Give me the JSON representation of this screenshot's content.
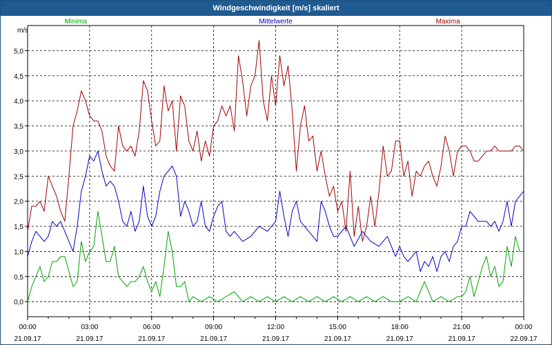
{
  "window": {
    "title": "Windgeschwindigkeit [m/s] skaliert"
  },
  "chart_data": {
    "type": "line",
    "title": "Windgeschwindigkeit [m/s] skaliert",
    "ylabel": "m/s",
    "xlabel": "",
    "ylim": [
      -0.3,
      5.5
    ],
    "xlim": [
      0,
      24
    ],
    "grid": true,
    "legend_placement": "top",
    "yticks": [
      "0,0",
      "0,5",
      "1,0",
      "1,5",
      "2,0",
      "2,5",
      "3,0",
      "3,5",
      "4,0",
      "4,5",
      "5,0"
    ],
    "xticks": [
      {
        "time": "00:00",
        "date": "21.09.17"
      },
      {
        "time": "03:00",
        "date": "21.09.17"
      },
      {
        "time": "06:00",
        "date": "21.09.17"
      },
      {
        "time": "09:00",
        "date": "21.09.17"
      },
      {
        "time": "12:00",
        "date": "21.09.17"
      },
      {
        "time": "15:00",
        "date": "21.09.17"
      },
      {
        "time": "18:00",
        "date": "21.09.17"
      },
      {
        "time": "21:00",
        "date": "21.09.17"
      },
      {
        "time": "00:00",
        "date": "22.09.17"
      }
    ],
    "series": [
      {
        "name": "Minima",
        "color": "#00a000",
        "x": [
          0,
          0.2,
          0.4,
          0.6,
          0.8,
          1.0,
          1.2,
          1.4,
          1.6,
          1.8,
          2.0,
          2.2,
          2.4,
          2.6,
          2.8,
          3.0,
          3.2,
          3.4,
          3.6,
          3.8,
          4.0,
          4.2,
          4.4,
          4.6,
          4.8,
          5.0,
          5.2,
          5.4,
          5.6,
          5.8,
          6.0,
          6.2,
          6.4,
          6.6,
          6.8,
          7.0,
          7.2,
          7.4,
          7.6,
          7.8,
          8.0,
          8.4,
          8.8,
          9.2,
          9.6,
          10.0,
          10.4,
          10.8,
          11.2,
          11.6,
          12.0,
          12.4,
          12.8,
          13.2,
          13.6,
          14.0,
          14.4,
          14.8,
          15.2,
          15.6,
          16.0,
          16.4,
          16.8,
          17.2,
          17.6,
          18.0,
          18.4,
          18.8,
          19.2,
          19.6,
          20.0,
          20.4,
          20.8,
          21.0,
          21.2,
          21.4,
          21.6,
          21.8,
          22.0,
          22.2,
          22.4,
          22.6,
          22.8,
          23.0,
          23.2,
          23.4,
          23.6,
          23.8,
          24.0
        ],
        "y": [
          0.0,
          0.3,
          0.5,
          0.7,
          0.4,
          0.5,
          0.8,
          0.8,
          0.9,
          0.9,
          0.6,
          0.3,
          0.4,
          1.2,
          0.8,
          1.0,
          1.1,
          1.8,
          1.3,
          0.8,
          0.8,
          1.1,
          0.5,
          0.4,
          0.3,
          0.4,
          0.4,
          0.5,
          0.7,
          0.4,
          0.2,
          0.4,
          0.1,
          0.7,
          1.4,
          1.0,
          0.3,
          0.3,
          0.4,
          0.0,
          0.1,
          0.0,
          0.1,
          0.0,
          0.1,
          0.2,
          0.0,
          0.1,
          0.0,
          0.1,
          0.0,
          0.1,
          0.0,
          0.1,
          0.0,
          0.1,
          0.0,
          0.1,
          0.0,
          0.1,
          0.0,
          0.1,
          0.0,
          0.1,
          0.0,
          0.0,
          0.1,
          0.0,
          0.4,
          0.0,
          0.1,
          0.0,
          0.1,
          0.1,
          0.2,
          0.5,
          0.1,
          0.4,
          0.7,
          0.9,
          0.5,
          0.7,
          0.3,
          0.4,
          1.1,
          0.7,
          1.3,
          1.0,
          1.0
        ]
      },
      {
        "name": "Mittelwerte",
        "color": "#0000c0",
        "x": [
          0,
          0.2,
          0.4,
          0.6,
          0.8,
          1.0,
          1.2,
          1.4,
          1.6,
          1.8,
          2.0,
          2.2,
          2.4,
          2.6,
          2.8,
          3.0,
          3.2,
          3.4,
          3.6,
          3.8,
          4.0,
          4.2,
          4.4,
          4.6,
          4.8,
          5.0,
          5.2,
          5.4,
          5.6,
          5.8,
          6.0,
          6.2,
          6.4,
          6.6,
          6.8,
          7.0,
          7.2,
          7.4,
          7.6,
          7.8,
          8.0,
          8.2,
          8.4,
          8.6,
          8.8,
          9.0,
          9.2,
          9.4,
          9.6,
          9.8,
          10.0,
          10.4,
          10.8,
          11.2,
          11.6,
          12.0,
          12.2,
          12.4,
          12.6,
          12.8,
          13.0,
          13.2,
          13.6,
          14.0,
          14.2,
          14.4,
          14.6,
          14.8,
          15.0,
          15.4,
          15.8,
          16.2,
          16.6,
          17.0,
          17.4,
          17.8,
          18.0,
          18.2,
          18.4,
          18.6,
          18.8,
          19.0,
          19.2,
          19.4,
          19.6,
          19.8,
          20.0,
          20.2,
          20.4,
          20.6,
          20.8,
          21.0,
          21.2,
          21.4,
          21.6,
          21.8,
          22.0,
          22.2,
          22.4,
          22.6,
          22.8,
          23.0,
          23.2,
          23.4,
          23.6,
          23.8,
          24.0
        ],
        "y": [
          0.9,
          1.2,
          1.4,
          1.3,
          1.2,
          1.3,
          1.6,
          1.5,
          1.6,
          1.4,
          1.2,
          1.0,
          1.5,
          2.2,
          2.5,
          2.9,
          2.8,
          3.0,
          2.6,
          2.3,
          2.4,
          2.3,
          2.0,
          1.6,
          1.5,
          1.8,
          1.4,
          1.6,
          2.3,
          1.7,
          1.5,
          1.7,
          2.2,
          2.5,
          2.6,
          2.7,
          2.5,
          1.7,
          2.0,
          1.8,
          1.5,
          1.6,
          2.0,
          1.5,
          1.4,
          1.7,
          1.9,
          2.0,
          1.4,
          1.3,
          1.4,
          1.2,
          1.3,
          1.5,
          1.4,
          1.6,
          2.2,
          1.7,
          1.3,
          1.8,
          2.0,
          1.6,
          1.4,
          1.2,
          2.0,
          1.8,
          1.5,
          1.3,
          1.3,
          1.5,
          1.1,
          1.4,
          1.2,
          1.1,
          1.3,
          0.9,
          1.1,
          0.9,
          0.8,
          0.9,
          1.0,
          0.6,
          0.8,
          0.7,
          0.9,
          0.6,
          0.9,
          1.0,
          0.8,
          1.1,
          1.2,
          1.5,
          1.5,
          1.8,
          1.7,
          1.6,
          1.6,
          1.6,
          1.5,
          1.6,
          1.4,
          1.6,
          2.0,
          1.5,
          2.0,
          2.1,
          2.2
        ]
      },
      {
        "name": "Maxima",
        "color": "#a00000",
        "x": [
          0,
          0.2,
          0.4,
          0.6,
          0.8,
          1.0,
          1.2,
          1.4,
          1.6,
          1.8,
          2.0,
          2.2,
          2.4,
          2.6,
          2.8,
          3.0,
          3.2,
          3.4,
          3.6,
          3.8,
          4.0,
          4.2,
          4.4,
          4.6,
          4.8,
          5.0,
          5.2,
          5.4,
          5.6,
          5.8,
          6.0,
          6.2,
          6.4,
          6.6,
          6.8,
          7.0,
          7.2,
          7.4,
          7.6,
          7.8,
          8.0,
          8.2,
          8.4,
          8.6,
          8.8,
          9.0,
          9.2,
          9.4,
          9.6,
          9.8,
          10.0,
          10.2,
          10.4,
          10.6,
          10.8,
          11.0,
          11.2,
          11.4,
          11.6,
          11.8,
          12.0,
          12.2,
          12.4,
          12.6,
          12.8,
          13.0,
          13.2,
          13.4,
          13.6,
          13.8,
          14.0,
          14.2,
          14.4,
          14.6,
          14.8,
          15.0,
          15.2,
          15.4,
          15.6,
          15.8,
          16.0,
          16.2,
          16.4,
          16.6,
          16.8,
          17.0,
          17.2,
          17.4,
          17.6,
          17.8,
          18.0,
          18.2,
          18.4,
          18.6,
          18.8,
          19.0,
          19.2,
          19.4,
          19.6,
          19.8,
          20.0,
          20.2,
          20.4,
          20.6,
          20.8,
          21.0,
          21.2,
          21.4,
          21.6,
          21.8,
          22.0,
          22.2,
          22.4,
          22.6,
          22.8,
          23.0,
          23.2,
          23.4,
          23.6,
          23.8,
          24.0
        ],
        "y": [
          1.4,
          1.9,
          1.9,
          2.0,
          1.8,
          2.5,
          2.3,
          2.1,
          1.8,
          1.6,
          2.5,
          3.5,
          3.8,
          4.2,
          4.0,
          3.7,
          3.6,
          3.6,
          3.4,
          2.9,
          2.7,
          2.6,
          3.5,
          3.1,
          3.0,
          3.1,
          2.9,
          3.4,
          4.4,
          4.2,
          3.6,
          3.1,
          3.2,
          4.3,
          3.8,
          4.0,
          3.0,
          4.1,
          3.9,
          3.2,
          3.0,
          3.4,
          2.8,
          3.2,
          2.9,
          3.5,
          3.6,
          3.9,
          3.7,
          3.9,
          3.4,
          4.9,
          4.4,
          3.7,
          4.3,
          4.5,
          5.2,
          4.0,
          3.6,
          4.5,
          3.9,
          4.9,
          4.3,
          4.7,
          3.8,
          2.6,
          3.5,
          3.9,
          3.2,
          3.3,
          2.6,
          3.0,
          2.5,
          2.1,
          2.3,
          1.8,
          2.0,
          1.4,
          2.6,
          1.3,
          1.9,
          1.2,
          1.5,
          2.1,
          1.5,
          2.2,
          3.1,
          2.5,
          2.6,
          3.2,
          3.2,
          2.5,
          2.8,
          2.1,
          2.6,
          2.5,
          2.7,
          2.8,
          2.5,
          2.3,
          2.7,
          3.3,
          3.0,
          2.5,
          3.0,
          3.1,
          3.1,
          3.0,
          2.8,
          2.8,
          2.9,
          3.0,
          3.0,
          3.1,
          3.0,
          3.0,
          3.0,
          3.0,
          3.1,
          3.1,
          3.0
        ]
      }
    ]
  }
}
